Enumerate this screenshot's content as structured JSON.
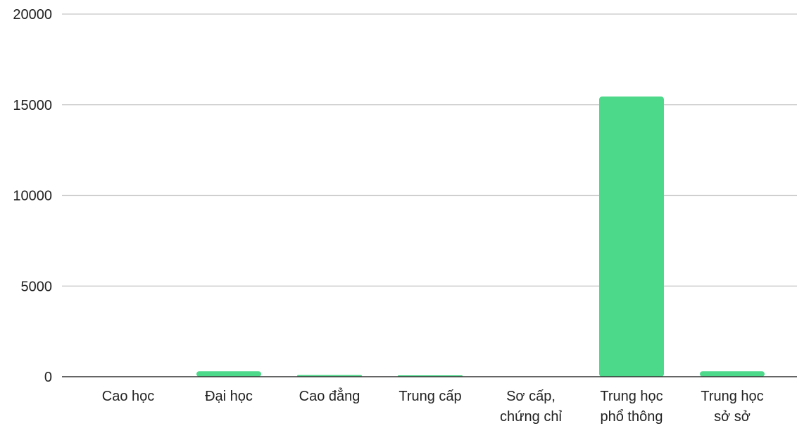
{
  "chart_data": {
    "type": "bar",
    "categories": [
      [
        "Cao học"
      ],
      [
        "Đại học"
      ],
      [
        "Cao đẳng"
      ],
      [
        "Trung cấp"
      ],
      [
        "Sơ cấp,",
        "chứng chỉ"
      ],
      [
        "Trung học",
        "phổ thông"
      ],
      [
        "Trung học",
        "sở sở"
      ]
    ],
    "values": [
      15,
      300,
      90,
      80,
      10,
      15450,
      300
    ],
    "ylim": [
      0,
      20000
    ],
    "yticks": [
      0,
      5000,
      10000,
      15000,
      20000
    ],
    "grid": true,
    "legend": "none",
    "bar_color": "#4dd98a"
  }
}
